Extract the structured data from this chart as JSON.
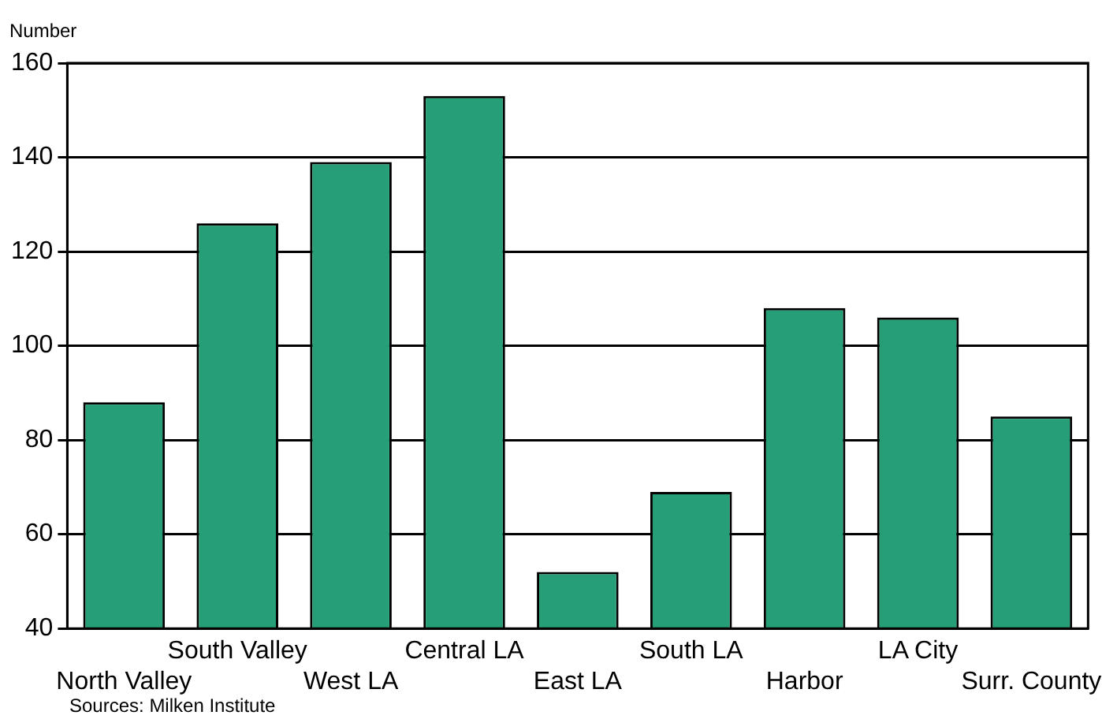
{
  "chart_data": {
    "type": "bar",
    "ylabel": "Number",
    "categories": [
      "North Valley",
      "South Valley",
      "West LA",
      "Central LA",
      "East LA",
      "South LA",
      "Harbor",
      "LA City",
      "Surr. County"
    ],
    "values": [
      88,
      126,
      139,
      153,
      52,
      69,
      108,
      106,
      85
    ],
    "color": "#269e78",
    "ylim": [
      40,
      160
    ],
    "yticks": [
      40,
      60,
      80,
      100,
      120,
      140,
      160
    ],
    "grid": "y",
    "legend": false,
    "annotations": [
      "Sources: Milken Institute"
    ]
  }
}
